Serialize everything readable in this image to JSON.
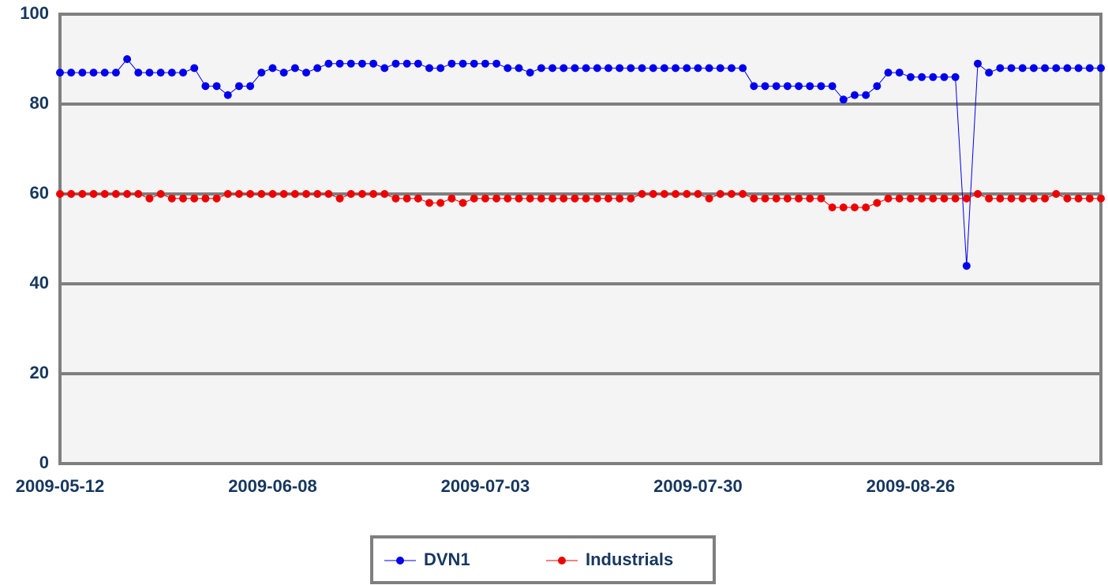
{
  "chart_data": {
    "type": "line",
    "categories": [
      "2009-05-12",
      null,
      null,
      null,
      null,
      null,
      null,
      null,
      null,
      null,
      null,
      null,
      null,
      null,
      null,
      null,
      null,
      null,
      null,
      "2009-06-08",
      null,
      null,
      null,
      null,
      null,
      null,
      null,
      null,
      null,
      null,
      null,
      null,
      null,
      null,
      null,
      null,
      null,
      null,
      "2009-07-03",
      null,
      null,
      null,
      null,
      null,
      null,
      null,
      null,
      null,
      null,
      null,
      null,
      null,
      null,
      null,
      null,
      null,
      null,
      "2009-07-30",
      null,
      null,
      null,
      null,
      null,
      null,
      null,
      null,
      null,
      null,
      null,
      null,
      null,
      null,
      null,
      null,
      null,
      null,
      "2009-08-26",
      null,
      null,
      null,
      null,
      null,
      null,
      null,
      null,
      null,
      null,
      null,
      null,
      null,
      null,
      null,
      null,
      null
    ],
    "series": [
      {
        "name": "DVN1",
        "color": "#0000ee",
        "values": [
          87,
          87,
          87,
          87,
          87,
          87,
          90,
          87,
          87,
          87,
          87,
          87,
          88,
          84,
          84,
          82,
          84,
          84,
          87,
          88,
          87,
          88,
          87,
          88,
          89,
          89,
          89,
          89,
          89,
          88,
          89,
          89,
          89,
          88,
          88,
          89,
          89,
          89,
          89,
          89,
          88,
          88,
          87,
          88,
          88,
          88,
          88,
          88,
          88,
          88,
          88,
          88,
          88,
          88,
          88,
          88,
          88,
          88,
          88,
          88,
          88,
          88,
          84,
          84,
          84,
          84,
          84,
          84,
          84,
          84,
          81,
          82,
          82,
          84,
          87,
          87,
          86,
          86,
          86,
          86,
          86,
          44,
          89,
          87,
          88,
          88,
          88,
          88,
          88,
          88,
          88,
          88,
          88,
          88
        ]
      },
      {
        "name": "Industrials",
        "color": "#ee0000",
        "values": [
          60,
          60,
          60,
          60,
          60,
          60,
          60,
          60,
          59,
          60,
          59,
          59,
          59,
          59,
          59,
          60,
          60,
          60,
          60,
          60,
          60,
          60,
          60,
          60,
          60,
          59,
          60,
          60,
          60,
          60,
          59,
          59,
          59,
          58,
          58,
          59,
          58,
          59,
          59,
          59,
          59,
          59,
          59,
          59,
          59,
          59,
          59,
          59,
          59,
          59,
          59,
          59,
          60,
          60,
          60,
          60,
          60,
          60,
          59,
          60,
          60,
          60,
          59,
          59,
          59,
          59,
          59,
          59,
          59,
          57,
          57,
          57,
          57,
          58,
          59,
          59,
          59,
          59,
          59,
          59,
          59,
          59,
          60,
          59,
          59,
          59,
          59,
          59,
          59,
          60,
          59,
          59,
          59,
          59
        ]
      }
    ],
    "ylim": [
      0,
      100
    ],
    "yticks": [
      0,
      20,
      40,
      60,
      80,
      100
    ],
    "grid": true,
    "legend": "bottom"
  }
}
